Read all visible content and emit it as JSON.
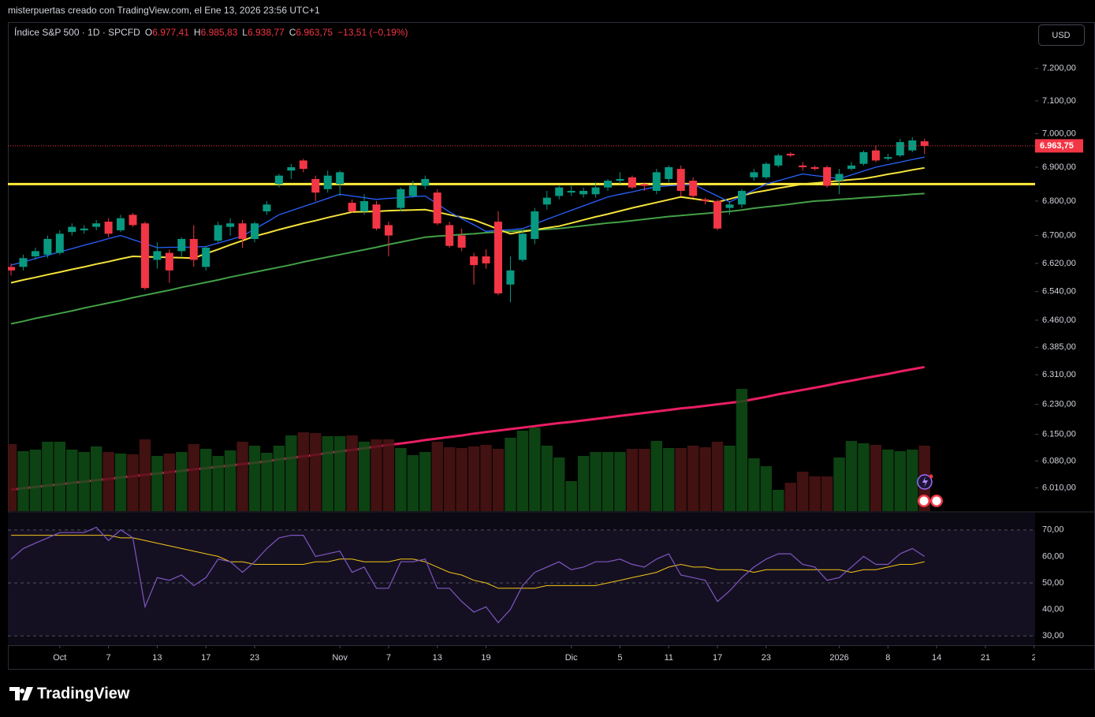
{
  "header": {
    "title": "misterpuertas creado con TradingView.com, el Ene 13, 2026 23:56 UTC+1",
    "brand": "TradingView"
  },
  "chart_data": {
    "type": "candlestick",
    "symbol": "Índice S&P 500 · 1D · SPCFD",
    "ohlc_legend": [
      {
        "key": "O",
        "text": "6.977,41"
      },
      {
        "key": "H",
        "text": "6.985,83"
      },
      {
        "key": "L",
        "text": "6.938,77"
      },
      {
        "key": "C",
        "text": "6.963,75"
      }
    ],
    "change": "−13,51 (−0,19%)",
    "currency": "USD",
    "xlim": [
      -0.26,
      84.08
    ],
    "xticks": [
      {
        "value": 4,
        "label": "Oct"
      },
      {
        "value": 8,
        "label": "7"
      },
      {
        "value": 12,
        "label": "13"
      },
      {
        "value": 16,
        "label": "17"
      },
      {
        "value": 20,
        "label": "23"
      },
      {
        "value": 27,
        "label": "Nov"
      },
      {
        "value": 31,
        "label": "7"
      },
      {
        "value": 35,
        "label": "13"
      },
      {
        "value": 39,
        "label": "19"
      },
      {
        "value": 46,
        "label": "Dic"
      },
      {
        "value": 50,
        "label": "5"
      },
      {
        "value": 54,
        "label": "11"
      },
      {
        "value": 58,
        "label": "17"
      },
      {
        "value": 62,
        "label": "23"
      },
      {
        "value": 68,
        "label": "2026"
      },
      {
        "value": 72,
        "label": "8"
      },
      {
        "value": 76,
        "label": "14"
      },
      {
        "value": 80,
        "label": "21"
      },
      {
        "value": 84,
        "label": "2"
      }
    ],
    "open": [
      6610,
      6610,
      6640,
      6645,
      6650,
      6710,
      6715,
      6725,
      6740,
      6715,
      6760,
      6735,
      6630,
      6650,
      6655,
      6690,
      6610,
      6685,
      6725,
      6735,
      6690,
      6770,
      6850,
      6890,
      6920,
      6865,
      6835,
      6850,
      6795,
      6770,
      6790,
      6730,
      6780,
      6815,
      6845,
      6825,
      6730,
      6700,
      6640,
      6640,
      6740,
      6560,
      6630,
      6690,
      6790,
      6815,
      6825,
      6820,
      6820,
      6840,
      6860,
      6870,
      6850,
      6830,
      6865,
      6895,
      6860,
      6805,
      6800,
      6780,
      6790,
      6870,
      6870,
      6905,
      6940,
      6905,
      6900,
      6900,
      6860,
      6895,
      6910,
      6950,
      6925,
      6935,
      6950,
      6977.41
    ],
    "high": [
      6620,
      6645,
      6665,
      6700,
      6715,
      6735,
      6730,
      6745,
      6750,
      6760,
      6765,
      6740,
      6680,
      6660,
      6695,
      6730,
      6670,
      6740,
      6750,
      6745,
      6740,
      6800,
      6880,
      6910,
      6925,
      6875,
      6890,
      6890,
      6805,
      6820,
      6800,
      6740,
      6840,
      6860,
      6875,
      6835,
      6740,
      6720,
      6650,
      6660,
      6770,
      6640,
      6715,
      6780,
      6830,
      6845,
      6845,
      6840,
      6855,
      6865,
      6885,
      6875,
      6855,
      6895,
      6905,
      6905,
      6870,
      6810,
      6805,
      6800,
      6835,
      6895,
      6915,
      6940,
      6945,
      6915,
      6905,
      6905,
      6895,
      6915,
      6950,
      6965,
      6940,
      6985,
      6990,
      6985.83
    ],
    "low": [
      6585,
      6600,
      6630,
      6635,
      6645,
      6700,
      6705,
      6715,
      6695,
      6710,
      6725,
      6545,
      6605,
      6565,
      6640,
      6610,
      6600,
      6680,
      6700,
      6665,
      6680,
      6760,
      6840,
      6865,
      6885,
      6800,
      6825,
      6815,
      6765,
      6760,
      6715,
      6640,
      6770,
      6810,
      6835,
      6730,
      6665,
      6655,
      6560,
      6605,
      6530,
      6510,
      6625,
      6675,
      6775,
      6805,
      6815,
      6810,
      6810,
      6830,
      6850,
      6835,
      6830,
      6820,
      6855,
      6815,
      6810,
      6790,
      6715,
      6760,
      6780,
      6860,
      6865,
      6900,
      6930,
      6890,
      6890,
      6840,
      6820,
      6890,
      6905,
      6915,
      6920,
      6930,
      6945,
      6938.77
    ],
    "close": [
      6600,
      6635,
      6655,
      6690,
      6705,
      6725,
      6720,
      6735,
      6705,
      6750,
      6730,
      6550,
      6655,
      6600,
      6690,
      6630,
      6665,
      6730,
      6735,
      6690,
      6735,
      6790,
      6875,
      6900,
      6895,
      6825,
      6875,
      6885,
      6770,
      6800,
      6720,
      6700,
      6835,
      6845,
      6865,
      6735,
      6670,
      6665,
      6615,
      6620,
      6535,
      6600,
      6705,
      6770,
      6810,
      6840,
      6830,
      6830,
      6840,
      6860,
      6865,
      6840,
      6845,
      6885,
      6900,
      6830,
      6815,
      6800,
      6720,
      6790,
      6830,
      6885,
      6910,
      6935,
      6935,
      6900,
      6895,
      6845,
      6880,
      6905,
      6945,
      6920,
      6930,
      6975,
      6980,
      6963.75
    ],
    "up_color": "#089981",
    "down_color": "#f23645",
    "log_scale": true,
    "ylim": [
      5950,
      7340
    ],
    "yticks": [
      {
        "value": 7200,
        "label": "7.200,00"
      },
      {
        "value": 7100,
        "label": "7.100,00"
      },
      {
        "value": 7000,
        "label": "7.000,00"
      },
      {
        "value": 6900,
        "label": "6.900,00"
      },
      {
        "value": 6800,
        "label": "6.800,00"
      },
      {
        "value": 6700,
        "label": "6.700,00"
      },
      {
        "value": 6620,
        "label": "6.620,00"
      },
      {
        "value": 6540,
        "label": "6.540,00"
      },
      {
        "value": 6460,
        "label": "6.460,00"
      },
      {
        "value": 6385,
        "label": "6.385,00"
      },
      {
        "value": 6310,
        "label": "6.310,00"
      },
      {
        "value": 6230,
        "label": "6.230,00"
      },
      {
        "value": 6150,
        "label": "6.150,00"
      },
      {
        "value": 6080,
        "label": "6.080,00"
      },
      {
        "value": 6010,
        "label": "6.010,00"
      }
    ],
    "series": [
      {
        "color": "#e91e63",
        "width": 3,
        "values": [
          6005,
          6009,
          6012,
          6016,
          6019,
          6023,
          6026,
          6030,
          6033,
          6037,
          6040,
          6044,
          6047,
          6051,
          6054,
          6058,
          6061,
          6065,
          6068,
          6072,
          6075,
          6079,
          6084,
          6088,
          6092,
          6096,
          6101,
          6105,
          6109,
          6113,
          6118,
          6122,
          6126,
          6130,
          6135,
          6139,
          6143,
          6147,
          6152,
          6156,
          6160,
          6164,
          6168,
          6172,
          6176,
          6180,
          6183,
          6187,
          6191,
          6195,
          6199,
          6203,
          6207,
          6211,
          6215,
          6219,
          6222,
          6226,
          6230,
          6234,
          6238,
          6244,
          6250,
          6257,
          6263,
          6269,
          6275,
          6281,
          6288,
          6294,
          6300,
          6306,
          6312,
          6319,
          6325,
          6331
        ]
      },
      {
        "color": "#43a047",
        "width": 2,
        "values": [
          6450,
          6457,
          6465,
          6472,
          6479,
          6486,
          6494,
          6501,
          6508,
          6515,
          6523,
          6530,
          6537,
          6544,
          6552,
          6559,
          6566,
          6573,
          6581,
          6588,
          6595,
          6602,
          6609,
          6616,
          6624,
          6631,
          6638,
          6645,
          6652,
          6659,
          6666,
          6674,
          6681,
          6688,
          6695,
          6698,
          6700,
          6703,
          6705,
          6708,
          6710,
          6712,
          6714,
          6716,
          6718,
          6720,
          6724,
          6728,
          6732,
          6736,
          6739,
          6743,
          6747,
          6751,
          6755,
          6758,
          6761,
          6764,
          6767,
          6770,
          6774,
          6779,
          6783,
          6787,
          6791,
          6796,
          6800,
          6802,
          6805,
          6807,
          6810,
          6812,
          6815,
          6817,
          6820,
          6822
        ]
      },
      {
        "color": "#f5e33b",
        "width": 2,
        "values": [
          6565,
          6573,
          6580,
          6588,
          6595,
          6603,
          6610,
          6618,
          6625,
          6633,
          6640,
          6639,
          6638,
          6637,
          6636,
          6635,
          6648,
          6660,
          6673,
          6685,
          6698,
          6707,
          6717,
          6726,
          6735,
          6743,
          6752,
          6760,
          6768,
          6769,
          6770,
          6772,
          6773,
          6774,
          6775,
          6768,
          6760,
          6753,
          6745,
          6732,
          6718,
          6705,
          6711,
          6716,
          6722,
          6727,
          6736,
          6745,
          6754,
          6762,
          6771,
          6780,
          6788,
          6796,
          6804,
          6812,
          6807,
          6802,
          6797,
          6806,
          6816,
          6825,
          6831,
          6838,
          6844,
          6850,
          6853,
          6856,
          6860,
          6863,
          6866,
          6872,
          6879,
          6885,
          6892,
          6898
        ]
      },
      {
        "color": "#2962ff",
        "width": 1.3,
        "values": [
          6615,
          6624,
          6634,
          6643,
          6653,
          6662,
          6672,
          6681,
          6691,
          6700,
          6688,
          6677,
          6665,
          6666,
          6666,
          6667,
          6668,
          6678,
          6688,
          6698,
          6719,
          6739,
          6760,
          6772,
          6784,
          6796,
          6808,
          6820,
          6815,
          6810,
          6805,
          6808,
          6810,
          6813,
          6815,
          6792,
          6768,
          6749,
          6731,
          6712,
          6715,
          6717,
          6720,
          6733,
          6747,
          6760,
          6773,
          6786,
          6799,
          6812,
          6820,
          6827,
          6835,
          6842,
          6845,
          6847,
          6850,
          6832,
          6815,
          6797,
          6815,
          6832,
          6850,
          6860,
          6870,
          6880,
          6875,
          6871,
          6866,
          6877,
          6889,
          6900,
          6908,
          6915,
          6923,
          6930
        ]
      }
    ],
    "hline": {
      "value": 6850,
      "color": "#ffeb3b"
    },
    "last_price": {
      "value": 6963.75,
      "label": "6.963,75"
    },
    "volume": {
      "ylim": [
        0,
        160
      ],
      "up_color": "#0f4d16",
      "down_color": "#4d1414",
      "values": [
        85,
        76,
        78,
        88,
        88,
        78,
        75,
        82,
        75,
        73,
        72,
        91,
        70,
        73,
        75,
        85,
        79,
        70,
        77,
        88,
        83,
        74,
        83,
        96,
        100,
        99,
        95,
        95,
        96,
        88,
        91,
        91,
        80,
        71,
        75,
        88,
        81,
        80,
        82,
        84,
        79,
        93,
        102,
        106,
        83,
        68,
        38,
        70,
        75,
        75,
        75,
        79,
        79,
        89,
        80,
        80,
        83,
        81,
        88,
        83,
        155,
        67,
        57,
        27,
        36,
        50,
        44,
        44,
        68,
        89,
        86,
        84,
        78,
        76,
        78,
        83
      ]
    },
    "rsi": {
      "color": "#7e57c2",
      "ma_color": "#f5c518",
      "ylim": [
        26.5,
        76.5
      ],
      "yticks": [
        {
          "value": 70,
          "label": "70,00"
        },
        {
          "value": 60,
          "label": "60,00"
        },
        {
          "value": 50,
          "label": "50,00"
        },
        {
          "value": 40,
          "label": "40,00"
        },
        {
          "value": 30,
          "label": "30,00"
        }
      ],
      "values": [
        59,
        63,
        65,
        67,
        69,
        69,
        69,
        71,
        66,
        70,
        67,
        41,
        52,
        51,
        53,
        49,
        52,
        59,
        58,
        54,
        58,
        63,
        67,
        68,
        68,
        60,
        61,
        62,
        54,
        56,
        48,
        48,
        58,
        58,
        59,
        48,
        48,
        43,
        39,
        41,
        35,
        40,
        49,
        54,
        56,
        58,
        55,
        56,
        58,
        58,
        59,
        57,
        56,
        59,
        61,
        53,
        52,
        51,
        43,
        47,
        52,
        56,
        59,
        61,
        61,
        57,
        56,
        51,
        52,
        56,
        60,
        57,
        57,
        61,
        63,
        60
      ],
      "ma": [
        68,
        68,
        68,
        68,
        68,
        68,
        68,
        68,
        68,
        67,
        67,
        66,
        65,
        64,
        63,
        62,
        61,
        60,
        58,
        58,
        57,
        57,
        57,
        57,
        57,
        58,
        58,
        59,
        59,
        58,
        58,
        58,
        59,
        59,
        58,
        56,
        54,
        53,
        51,
        50,
        48,
        48,
        48,
        48,
        49,
        49,
        49,
        49,
        49,
        50,
        51,
        52,
        53,
        54,
        56,
        57,
        56,
        56,
        55,
        55,
        55,
        54,
        55,
        55,
        55,
        55,
        55,
        55,
        55,
        54,
        55,
        55,
        56,
        57,
        57,
        58
      ]
    }
  }
}
